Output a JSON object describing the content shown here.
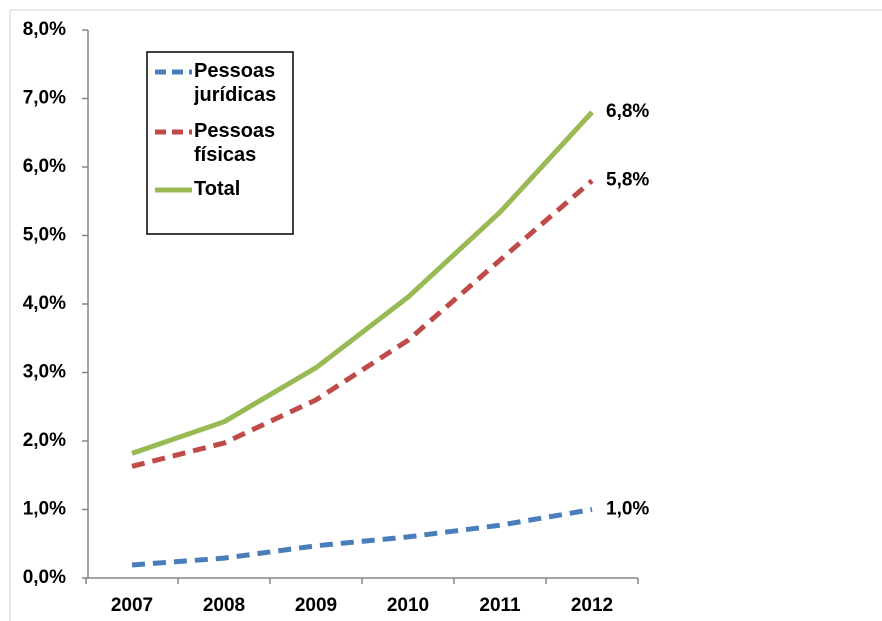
{
  "chart_data": {
    "type": "line",
    "categories": [
      "2007",
      "2008",
      "2009",
      "2010",
      "2011",
      "2012"
    ],
    "series": [
      {
        "name": "Pessoas jurídicas",
        "color": "#4a7ebb",
        "dashed": true,
        "values": [
          0.19,
          0.29,
          0.47,
          0.6,
          0.77,
          1.0
        ],
        "value_labels": [
          null,
          null,
          null,
          null,
          null,
          "1,0%"
        ]
      },
      {
        "name": "Pessoas físicas",
        "color": "#be4b48",
        "dashed": true,
        "values": [
          1.63,
          1.97,
          2.6,
          3.47,
          4.64,
          5.8
        ],
        "value_labels": [
          null,
          null,
          null,
          null,
          null,
          "5,8%"
        ]
      },
      {
        "name": "Total",
        "color": "#98b954",
        "dashed": false,
        "values": [
          1.82,
          2.28,
          3.07,
          4.1,
          5.34,
          6.8
        ],
        "value_labels": [
          null,
          null,
          null,
          null,
          null,
          "6,8%"
        ]
      }
    ],
    "ylim": [
      0,
      8
    ],
    "yticks": [
      {
        "value": 0,
        "label": "0,0%"
      },
      {
        "value": 1,
        "label": "1,0%"
      },
      {
        "value": 2,
        "label": "2,0%"
      },
      {
        "value": 3,
        "label": "3,0%"
      },
      {
        "value": 4,
        "label": "4,0%"
      },
      {
        "value": 5,
        "label": "5,0%"
      },
      {
        "value": 6,
        "label": "6,0%"
      },
      {
        "value": 7,
        "label": "7,0%"
      },
      {
        "value": 8,
        "label": "8,0%"
      }
    ],
    "grid": false,
    "legend": "upper left"
  }
}
